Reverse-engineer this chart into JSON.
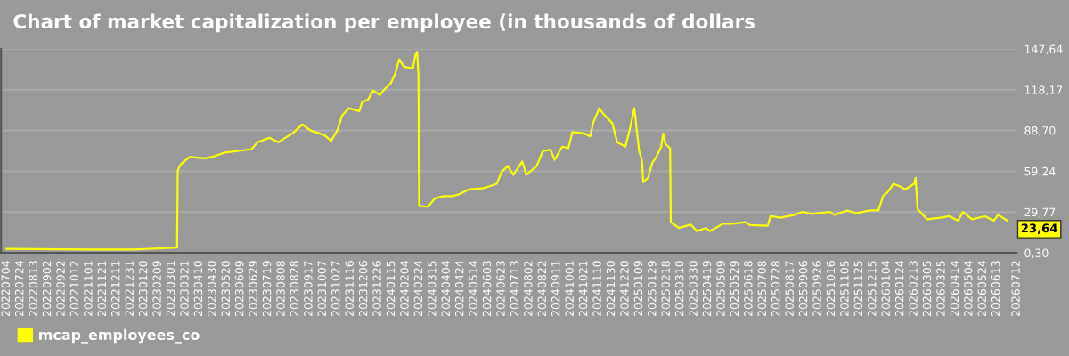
{
  "chart_data": {
    "type": "line",
    "title": "Chart of market capitalization per employee (in thousands of dollars",
    "x": [
      "2022-07-04",
      "2022-11-01",
      "2023-01-04",
      "2023-03-09",
      "2023-03-10",
      "2023-03-14",
      "2023-03-27",
      "2023-04-18",
      "2023-05-01",
      "2023-05-17",
      "2023-06-04",
      "2023-06-25",
      "2023-07-04",
      "2023-07-21",
      "2023-08-03",
      "2023-08-25",
      "2023-09-07",
      "2023-09-19",
      "2023-10-09",
      "2023-10-19",
      "2023-10-28",
      "2023-11-04",
      "2023-11-14",
      "2023-11-29",
      "2023-12-03",
      "2023-12-12",
      "2023-12-19",
      "2023-12-29",
      "2024-01-05",
      "2024-01-14",
      "2024-01-20",
      "2024-01-26",
      "2024-02-02",
      "2024-02-15",
      "2024-02-19",
      "2024-02-21",
      "2024-02-23",
      "2024-02-24",
      "2024-03-08",
      "2024-03-18",
      "2024-03-31",
      "2024-04-13",
      "2024-04-23",
      "2024-05-06",
      "2024-05-28",
      "2024-06-16",
      "2024-06-23",
      "2024-07-02",
      "2024-07-10",
      "2024-07-23",
      "2024-07-29",
      "2024-08-13",
      "2024-08-22",
      "2024-09-02",
      "2024-09-08",
      "2024-09-19",
      "2024-09-28",
      "2024-10-04",
      "2024-10-21",
      "2024-10-30",
      "2024-11-03",
      "2024-11-12",
      "2024-11-18",
      "2024-12-01",
      "2024-12-08",
      "2024-12-20",
      "2024-12-27",
      "2025-01-02",
      "2025-01-09",
      "2025-01-13",
      "2025-01-15",
      "2025-01-22",
      "2025-01-28",
      "2025-02-04",
      "2025-02-10",
      "2025-02-13",
      "2025-02-16",
      "2025-02-23",
      "2025-02-24",
      "2025-03-08",
      "2025-03-25",
      "2025-04-03",
      "2025-04-16",
      "2025-04-22",
      "2025-05-11",
      "2025-05-24",
      "2025-06-13",
      "2025-06-19",
      "2025-07-15",
      "2025-07-19",
      "2025-08-03",
      "2025-08-23",
      "2025-09-04",
      "2025-09-17",
      "2025-10-13",
      "2025-10-20",
      "2025-11-08",
      "2025-11-21",
      "2025-12-10",
      "2025-12-23",
      "2025-12-30",
      "2026-01-05",
      "2026-01-14",
      "2026-01-24",
      "2026-01-31",
      "2026-02-13",
      "2026-02-15",
      "2026-02-18",
      "2026-03-04",
      "2026-03-23",
      "2026-04-05",
      "2026-04-18",
      "2026-04-25",
      "2026-05-08",
      "2026-05-27",
      "2026-06-09",
      "2026-06-15",
      "2026-06-28"
    ],
    "series": [
      {
        "name": "mcap_employees_co",
        "color": "#ffff00",
        "values": [
          3.1,
          2.7,
          2.7,
          4.0,
          59.8,
          64.1,
          69.5,
          68.6,
          69.9,
          72.7,
          73.8,
          75.1,
          80.2,
          83.4,
          80.2,
          87.1,
          93.0,
          88.7,
          85.5,
          81.3,
          88.7,
          99.5,
          104.8,
          102.7,
          109.1,
          111.2,
          117.6,
          114.4,
          118.7,
          123.0,
          129.5,
          140.1,
          134.8,
          133.7,
          144.4,
          145.5,
          129.5,
          34.2,
          33.6,
          39.6,
          41.2,
          41.3,
          42.7,
          46.0,
          47.0,
          50.2,
          58.8,
          63.1,
          56.6,
          66.3,
          56.6,
          63.1,
          73.8,
          74.9,
          67.4,
          77.0,
          75.9,
          87.6,
          86.6,
          84.5,
          94.0,
          104.8,
          100.6,
          94.0,
          80.2,
          77.0,
          90.9,
          104.8,
          73.8,
          67.4,
          51.3,
          54.5,
          65.2,
          70.6,
          77.0,
          86.6,
          79.1,
          75.9,
          22.4,
          18.2,
          20.7,
          16.0,
          18.2,
          16.0,
          21.3,
          21.3,
          22.4,
          20.3,
          19.8,
          26.7,
          25.6,
          27.7,
          29.9,
          28.4,
          29.9,
          27.7,
          30.9,
          28.8,
          30.9,
          30.9,
          41.6,
          43.8,
          50.2,
          48.1,
          46.0,
          50.2,
          54.5,
          31.9,
          24.5,
          25.6,
          26.7,
          23.5,
          29.9,
          24.5,
          26.7,
          23.5,
          27.7,
          23.64
        ]
      }
    ],
    "xlim": [
      "2022-06-26",
      "2026-07-12"
    ],
    "xticks": [
      {
        "value": "2022-07-04",
        "label": "20220704"
      },
      {
        "value": "2022-07-24",
        "label": "20220724"
      },
      {
        "value": "2022-08-13",
        "label": "20220813"
      },
      {
        "value": "2022-09-02",
        "label": "20220902"
      },
      {
        "value": "2022-09-22",
        "label": "20220922"
      },
      {
        "value": "2022-10-12",
        "label": "20221012"
      },
      {
        "value": "2022-11-01",
        "label": "20221101"
      },
      {
        "value": "2022-11-21",
        "label": "20221121"
      },
      {
        "value": "2022-12-11",
        "label": "20221211"
      },
      {
        "value": "2022-12-31",
        "label": "20221231"
      },
      {
        "value": "2023-01-20",
        "label": "20230120"
      },
      {
        "value": "2023-02-09",
        "label": "20230209"
      },
      {
        "value": "2023-03-01",
        "label": "20230301"
      },
      {
        "value": "2023-03-21",
        "label": "20230321"
      },
      {
        "value": "2023-04-10",
        "label": "20230410"
      },
      {
        "value": "2023-04-30",
        "label": "20230430"
      },
      {
        "value": "2023-05-20",
        "label": "20230520"
      },
      {
        "value": "2023-06-09",
        "label": "20230609"
      },
      {
        "value": "2023-06-29",
        "label": "20230629"
      },
      {
        "value": "2023-07-19",
        "label": "20230719"
      },
      {
        "value": "2023-08-08",
        "label": "20230808"
      },
      {
        "value": "2023-08-28",
        "label": "20230828"
      },
      {
        "value": "2023-09-17",
        "label": "20230917"
      },
      {
        "value": "2023-10-07",
        "label": "20231007"
      },
      {
        "value": "2023-10-27",
        "label": "20231027"
      },
      {
        "value": "2023-11-16",
        "label": "20231116"
      },
      {
        "value": "2023-12-06",
        "label": "20231206"
      },
      {
        "value": "2023-12-26",
        "label": "20231226"
      },
      {
        "value": "2024-01-15",
        "label": "20240115"
      },
      {
        "value": "2024-02-04",
        "label": "20240204"
      },
      {
        "value": "2024-02-24",
        "label": "20240224"
      },
      {
        "value": "2024-03-15",
        "label": "20240315"
      },
      {
        "value": "2024-04-04",
        "label": "20240404"
      },
      {
        "value": "2024-04-24",
        "label": "20240424"
      },
      {
        "value": "2024-05-14",
        "label": "20240514"
      },
      {
        "value": "2024-06-03",
        "label": "20240603"
      },
      {
        "value": "2024-06-23",
        "label": "20240623"
      },
      {
        "value": "2024-07-13",
        "label": "20240713"
      },
      {
        "value": "2024-08-02",
        "label": "20240802"
      },
      {
        "value": "2024-08-22",
        "label": "20240822"
      },
      {
        "value": "2024-09-11",
        "label": "20240911"
      },
      {
        "value": "2024-10-01",
        "label": "20241001"
      },
      {
        "value": "2024-10-21",
        "label": "20241021"
      },
      {
        "value": "2024-11-10",
        "label": "20241110"
      },
      {
        "value": "2024-11-30",
        "label": "20241130"
      },
      {
        "value": "2024-12-20",
        "label": "20241220"
      },
      {
        "value": "2025-01-09",
        "label": "20250109"
      },
      {
        "value": "2025-01-29",
        "label": "20250129"
      },
      {
        "value": "2025-02-18",
        "label": "20250218"
      },
      {
        "value": "2025-03-10",
        "label": "20250310"
      },
      {
        "value": "2025-03-30",
        "label": "20250330"
      },
      {
        "value": "2025-04-19",
        "label": "20250419"
      },
      {
        "value": "2025-05-09",
        "label": "20250509"
      },
      {
        "value": "2025-05-29",
        "label": "20250529"
      },
      {
        "value": "2025-06-18",
        "label": "20250618"
      },
      {
        "value": "2025-07-08",
        "label": "20250708"
      },
      {
        "value": "2025-07-28",
        "label": "20250728"
      },
      {
        "value": "2025-08-17",
        "label": "20250817"
      },
      {
        "value": "2025-09-06",
        "label": "20250906"
      },
      {
        "value": "2025-09-26",
        "label": "20250926"
      },
      {
        "value": "2025-10-16",
        "label": "20251016"
      },
      {
        "value": "2025-11-05",
        "label": "20251105"
      },
      {
        "value": "2025-11-25",
        "label": "20251125"
      },
      {
        "value": "2025-12-15",
        "label": "20251215"
      },
      {
        "value": "2026-01-04",
        "label": "20260104"
      },
      {
        "value": "2026-01-24",
        "label": "20260124"
      },
      {
        "value": "2026-02-13",
        "label": "20260213"
      },
      {
        "value": "2026-03-05",
        "label": "20260305"
      },
      {
        "value": "2026-03-25",
        "label": "20260325"
      },
      {
        "value": "2026-04-14",
        "label": "20260414"
      },
      {
        "value": "2026-05-04",
        "label": "20260504"
      },
      {
        "value": "2026-05-24",
        "label": "20260524"
      },
      {
        "value": "2026-06-13",
        "label": "20260613"
      },
      {
        "value": "2026-07-12",
        "label": "20260712"
      }
    ],
    "ylim": [
      0.3,
      147.64
    ],
    "yticks": [
      {
        "value": 0.3,
        "label": "0,30"
      },
      {
        "value": 29.77,
        "label": "29,77"
      },
      {
        "value": 59.24,
        "label": "59,24"
      },
      {
        "value": 88.7,
        "label": "88,70"
      },
      {
        "value": 118.17,
        "label": "118,17"
      },
      {
        "value": 147.64,
        "label": "147,64"
      }
    ],
    "grid": "y",
    "legend": "bottom left",
    "marker": "none",
    "line_style": "solid",
    "annotations": [
      "23,64"
    ]
  }
}
